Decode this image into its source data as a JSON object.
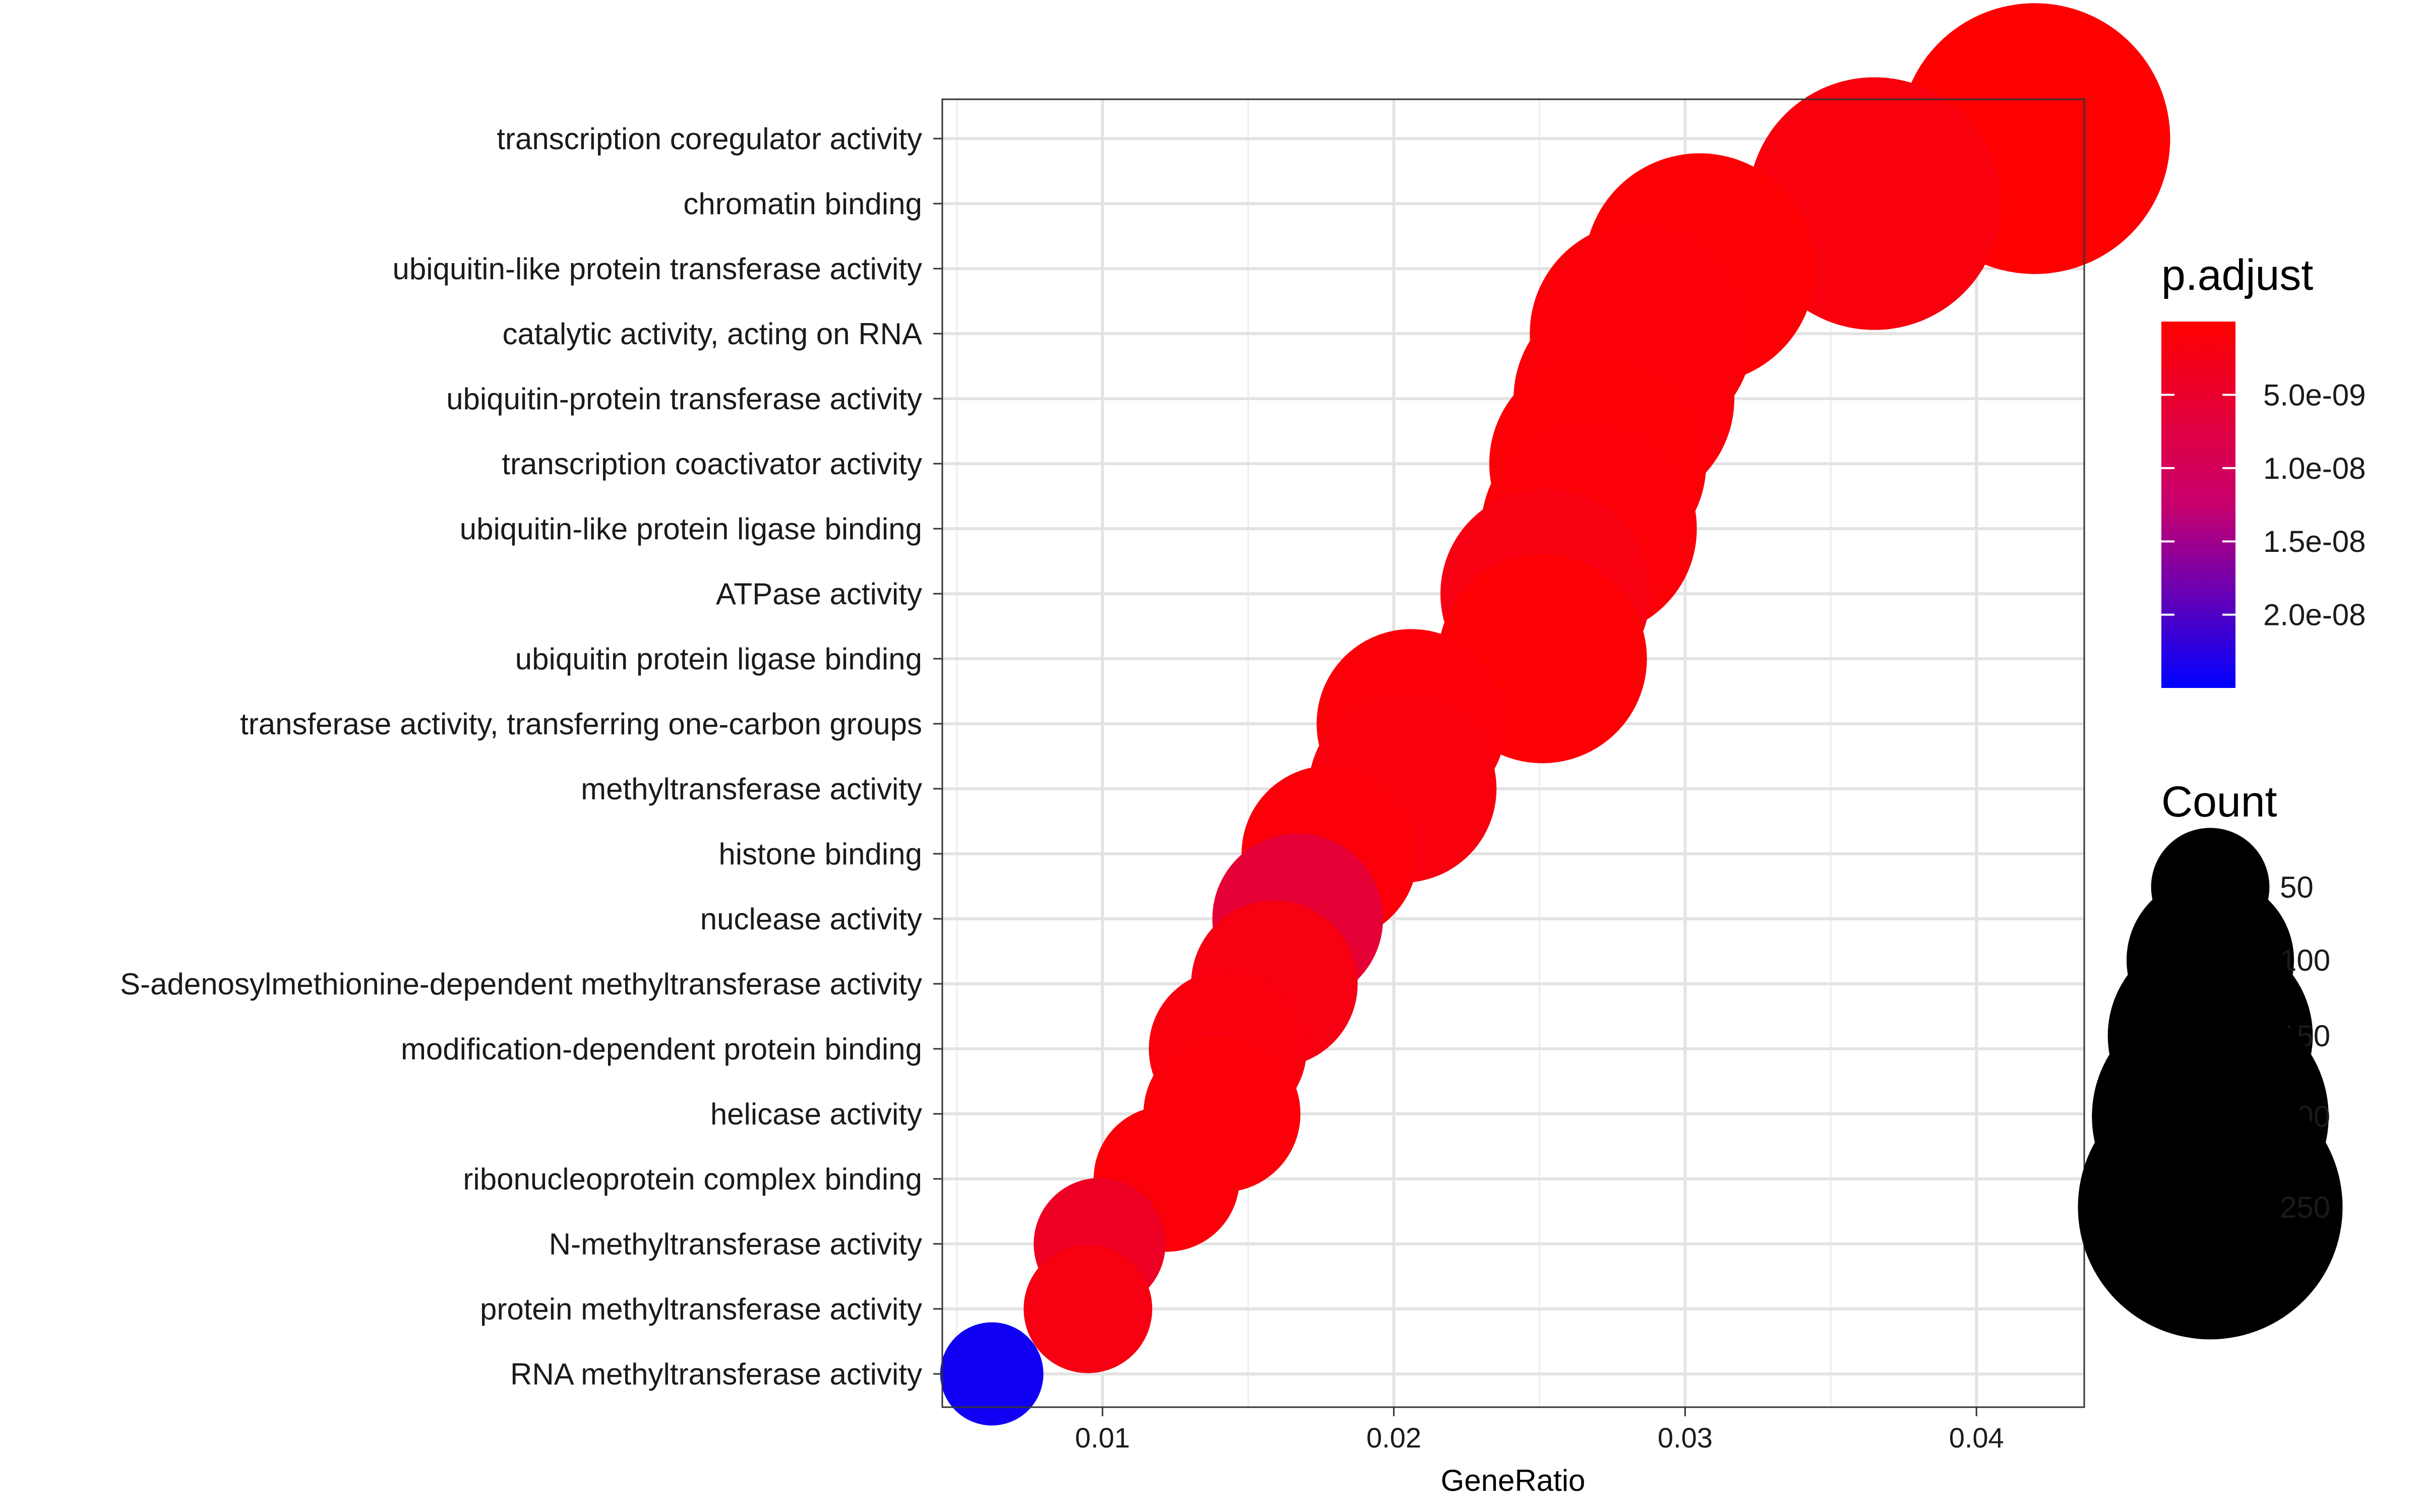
{
  "chart_data": {
    "type": "scatter",
    "xlabel": "GeneRatio",
    "ylabel": "",
    "xlim": [
      0.0045,
      0.0437
    ],
    "x_ticks": [
      0.01,
      0.02,
      0.03,
      0.04
    ],
    "x_tick_labels": [
      "0.01",
      "0.02",
      "0.03",
      "0.04"
    ],
    "grid": true,
    "categories": [
      "transcription coregulator activity",
      "chromatin binding",
      "ubiquitin-like protein transferase activity",
      "catalytic activity, acting on RNA",
      "ubiquitin-protein transferase activity",
      "transcription coactivator activity",
      "ubiquitin-like protein ligase binding",
      "ATPase activity",
      "ubiquitin protein ligase binding",
      "transferase activity, transferring one-carbon groups",
      "methyltransferase activity",
      "histone binding",
      "nuclease activity",
      "S-adenosylmethionine-dependent methyltransferase activity",
      "modification-dependent protein binding",
      "helicase activity",
      "ribonucleoprotein complex binding",
      "N-methyltransferase activity",
      "protein methyltransferase activity",
      "RNA methyltransferase activity"
    ],
    "points": [
      {
        "term": "transcription coregulator activity",
        "gene_ratio": 0.042,
        "count": 262,
        "p_adjust": 1e-10
      },
      {
        "term": "chromatin binding",
        "gene_ratio": 0.0365,
        "count": 228,
        "p_adjust": 1.5e-09
      },
      {
        "term": "ubiquitin-like protein transferase activity",
        "gene_ratio": 0.0305,
        "count": 190,
        "p_adjust": 5e-10
      },
      {
        "term": "catalytic activity, acting on RNA",
        "gene_ratio": 0.0285,
        "count": 178,
        "p_adjust": 8e-10
      },
      {
        "term": "ubiquitin-protein transferase activity",
        "gene_ratio": 0.0279,
        "count": 174,
        "p_adjust": 1e-09
      },
      {
        "term": "transcription coactivator activity",
        "gene_ratio": 0.027,
        "count": 168,
        "p_adjust": 6e-10
      },
      {
        "term": "ubiquitin-like protein ligase binding",
        "gene_ratio": 0.0267,
        "count": 166,
        "p_adjust": 8e-10
      },
      {
        "term": "ATPase activity",
        "gene_ratio": 0.0252,
        "count": 157,
        "p_adjust": 2e-09
      },
      {
        "term": "ubiquitin protein ligase binding",
        "gene_ratio": 0.0251,
        "count": 156,
        "p_adjust": 5e-10
      },
      {
        "term": "transferase activity, transferring one-carbon groups",
        "gene_ratio": 0.0206,
        "count": 128,
        "p_adjust": 1e-09
      },
      {
        "term": "methyltransferase activity",
        "gene_ratio": 0.0203,
        "count": 126,
        "p_adjust": 1.5e-09
      },
      {
        "term": "histone binding",
        "gene_ratio": 0.0178,
        "count": 111,
        "p_adjust": 1e-09
      },
      {
        "term": "nuclease activity",
        "gene_ratio": 0.0167,
        "count": 104,
        "p_adjust": 6e-09
      },
      {
        "term": "S-adenosylmethionine-dependent methyltransferase activity",
        "gene_ratio": 0.0159,
        "count": 99,
        "p_adjust": 2e-09
      },
      {
        "term": "modification-dependent protein binding",
        "gene_ratio": 0.0143,
        "count": 89,
        "p_adjust": 1.5e-09
      },
      {
        "term": "helicase activity",
        "gene_ratio": 0.0141,
        "count": 88,
        "p_adjust": 1e-09
      },
      {
        "term": "ribonucleoprotein complex binding",
        "gene_ratio": 0.0122,
        "count": 76,
        "p_adjust": 1e-09
      },
      {
        "term": "N-methyltransferase activity",
        "gene_ratio": 0.0099,
        "count": 62,
        "p_adjust": 4e-09
      },
      {
        "term": "protein methyltransferase activity",
        "gene_ratio": 0.0095,
        "count": 59,
        "p_adjust": 2e-09
      },
      {
        "term": "RNA methyltransferase activity",
        "gene_ratio": 0.0062,
        "count": 38,
        "p_adjust": 2.4e-08
      }
    ],
    "color_legend": {
      "title": "p.adjust",
      "range": [
        0,
        2.5e-08
      ],
      "ticks": [
        5e-09,
        1e-08,
        1.5e-08,
        2e-08
      ],
      "tick_labels": [
        "5.0e-09",
        "1.0e-08",
        "1.5e-08",
        "2.0e-08"
      ],
      "low_color": "#ff0000",
      "high_color": "#0000ff"
    },
    "size_legend": {
      "title": "Count",
      "values": [
        50,
        100,
        150,
        200,
        250
      ],
      "labels": [
        "50",
        "100",
        "150",
        "200",
        "250"
      ],
      "color": "#000000"
    }
  }
}
